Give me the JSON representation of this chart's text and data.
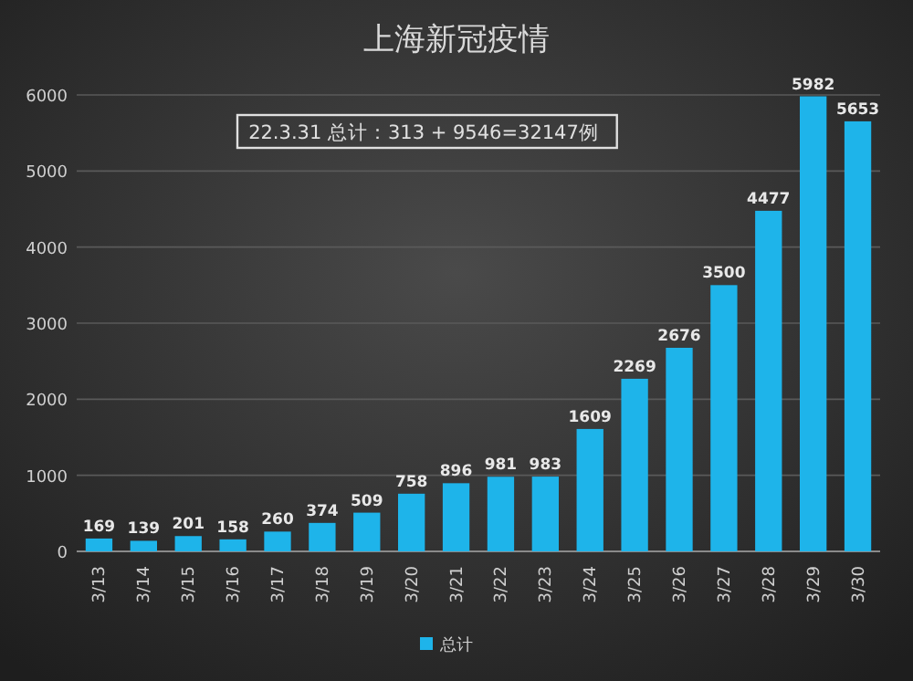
{
  "chart_data": {
    "type": "bar",
    "title": "上海新冠疫情",
    "categories": [
      "3/13",
      "3/14",
      "3/15",
      "3/16",
      "3/17",
      "3/18",
      "3/19",
      "3/20",
      "3/21",
      "3/22",
      "3/23",
      "3/24",
      "3/25",
      "3/26",
      "3/27",
      "3/28",
      "3/29",
      "3/30"
    ],
    "series": [
      {
        "name": "总计",
        "color": "#1eb4ea",
        "values": [
          169,
          139,
          201,
          158,
          260,
          374,
          509,
          758,
          896,
          981,
          983,
          1609,
          2269,
          2676,
          3500,
          4477,
          5982,
          5653
        ]
      }
    ],
    "ylim": [
      0,
      6000
    ],
    "yticks": [
      0,
      1000,
      2000,
      3000,
      4000,
      5000,
      6000
    ],
    "grid": "y",
    "legend": "bottom",
    "data_labels": true,
    "annotations": [
      "22.3.31 总计：313 + 9546=32147例"
    ]
  }
}
